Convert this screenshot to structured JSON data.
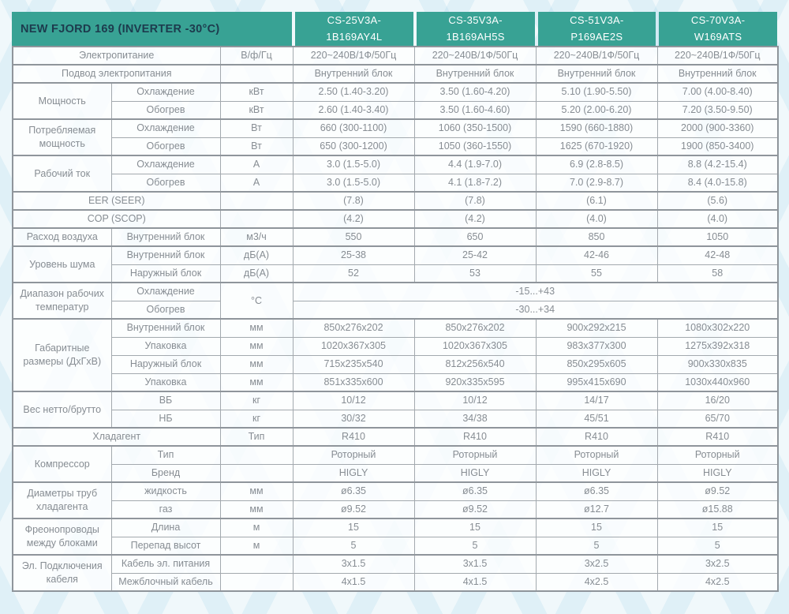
{
  "colors": {
    "teal": "#38a294",
    "title_text": "#1d3b4d",
    "model_text": "#ffffff",
    "cell_text": "#878d93",
    "border": "#a3a9ae",
    "background": "#f0f8fb",
    "pattern_accent": "#cfe8f3"
  },
  "header": {
    "title": "NEW FJORD 169 (INVERTER -30°C)",
    "models": [
      {
        "line1": "CS-25V3A-",
        "line2": "1B169AY4L"
      },
      {
        "line1": "CS-35V3A-",
        "line2": "1B169AH5S"
      },
      {
        "line1": "CS-51V3A-",
        "line2": "P169AE2S"
      },
      {
        "line1": "CS-70V3A-",
        "line2": "W169ATS"
      }
    ]
  },
  "table": {
    "rows": [
      {
        "gs": true,
        "cells": [
          {
            "t": "Электропитание",
            "k": "g",
            "cs": 2
          },
          {
            "t": "В/ф/Гц",
            "k": "u"
          },
          {
            "t": "220~240В/1Ф/50Гц",
            "k": "v"
          },
          {
            "t": "220~240В/1Ф/50Гц",
            "k": "v"
          },
          {
            "t": "220~240В/1Ф/50Гц",
            "k": "v"
          },
          {
            "t": "220~240В/1Ф/50Гц",
            "k": "v"
          }
        ]
      },
      {
        "gs": true,
        "cells": [
          {
            "t": "Подвод электропитания",
            "k": "g",
            "cs": 2
          },
          {
            "t": "",
            "k": "u"
          },
          {
            "t": "Внутренний блок",
            "k": "v"
          },
          {
            "t": "Внутренний блок",
            "k": "v"
          },
          {
            "t": "Внутренний блок",
            "k": "v"
          },
          {
            "t": "Внутренний блок",
            "k": "v"
          }
        ]
      },
      {
        "gs": true,
        "cells": [
          {
            "t": "Мощность",
            "k": "g",
            "rs": 2
          },
          {
            "t": "Охлаждение",
            "k": "s"
          },
          {
            "t": "кВт",
            "k": "u"
          },
          {
            "t": "2.50 (1.40-3.20)",
            "k": "v"
          },
          {
            "t": "3.50 (1.60-4.20)",
            "k": "v"
          },
          {
            "t": "5.10 (1.90-5.50)",
            "k": "v"
          },
          {
            "t": "7.00 (4.00-8.40)",
            "k": "v"
          }
        ]
      },
      {
        "cells": [
          {
            "t": "Обогрев",
            "k": "s"
          },
          {
            "t": "кВт",
            "k": "u"
          },
          {
            "t": "2.60 (1.40-3.40)",
            "k": "v"
          },
          {
            "t": "3.50 (1.60-4.60)",
            "k": "v"
          },
          {
            "t": "5.20 (2.00-6.20)",
            "k": "v"
          },
          {
            "t": "7.20 (3.50-9.50)",
            "k": "v"
          }
        ]
      },
      {
        "gs": true,
        "cells": [
          {
            "t": "Потребляемая мощность",
            "k": "g",
            "rs": 2
          },
          {
            "t": "Охлаждение",
            "k": "s"
          },
          {
            "t": "Вт",
            "k": "u"
          },
          {
            "t": "660 (300-1100)",
            "k": "v"
          },
          {
            "t": "1060 (350-1500)",
            "k": "v"
          },
          {
            "t": "1590 (660-1880)",
            "k": "v"
          },
          {
            "t": "2000 (900-3360)",
            "k": "v"
          }
        ]
      },
      {
        "cells": [
          {
            "t": "Обогрев",
            "k": "s"
          },
          {
            "t": "Вт",
            "k": "u"
          },
          {
            "t": "650 (300-1200)",
            "k": "v"
          },
          {
            "t": "1050 (360-1550)",
            "k": "v"
          },
          {
            "t": "1625 (670-1920)",
            "k": "v"
          },
          {
            "t": "1900 (850-3400)",
            "k": "v"
          }
        ]
      },
      {
        "gs": true,
        "cells": [
          {
            "t": "Рабочий ток",
            "k": "g",
            "rs": 2
          },
          {
            "t": "Охлаждение",
            "k": "s"
          },
          {
            "t": "А",
            "k": "u"
          },
          {
            "t": "3.0 (1.5-5.0)",
            "k": "v"
          },
          {
            "t": "4.4 (1.9-7.0)",
            "k": "v"
          },
          {
            "t": "6.9 (2.8-8.5)",
            "k": "v"
          },
          {
            "t": "8.8 (4.2-15.4)",
            "k": "v"
          }
        ]
      },
      {
        "cells": [
          {
            "t": "Обогрев",
            "k": "s"
          },
          {
            "t": "А",
            "k": "u"
          },
          {
            "t": "3.0 (1.5-5.0)",
            "k": "v"
          },
          {
            "t": "4.1 (1.8-7.2)",
            "k": "v"
          },
          {
            "t": "7.0 (2.9-8.7)",
            "k": "v"
          },
          {
            "t": "8.4 (4.0-15.8)",
            "k": "v"
          }
        ]
      },
      {
        "gs": true,
        "cells": [
          {
            "t": "EER (SEER)",
            "k": "g",
            "cs": 2
          },
          {
            "t": "",
            "k": "u"
          },
          {
            "t": "(7.8)",
            "k": "v"
          },
          {
            "t": "(7.8)",
            "k": "v"
          },
          {
            "t": "(6.1)",
            "k": "v"
          },
          {
            "t": "(5.6)",
            "k": "v"
          }
        ]
      },
      {
        "gs": true,
        "cells": [
          {
            "t": "COP (SCOP)",
            "k": "g",
            "cs": 2
          },
          {
            "t": "",
            "k": "u"
          },
          {
            "t": "(4.2)",
            "k": "v"
          },
          {
            "t": "(4.2)",
            "k": "v"
          },
          {
            "t": "(4.0)",
            "k": "v"
          },
          {
            "t": "(4.0)",
            "k": "v"
          }
        ]
      },
      {
        "gs": true,
        "cells": [
          {
            "t": "Расход воздуха",
            "k": "g"
          },
          {
            "t": "Внутренний блок",
            "k": "s"
          },
          {
            "t": "м3/ч",
            "k": "u"
          },
          {
            "t": "550",
            "k": "v"
          },
          {
            "t": "650",
            "k": "v"
          },
          {
            "t": "850",
            "k": "v"
          },
          {
            "t": "1050",
            "k": "v"
          }
        ]
      },
      {
        "gs": true,
        "cells": [
          {
            "t": "Уровень шума",
            "k": "g",
            "rs": 2
          },
          {
            "t": "Внутренний блок",
            "k": "s"
          },
          {
            "t": "дБ(А)",
            "k": "u"
          },
          {
            "t": "25-38",
            "k": "v"
          },
          {
            "t": "25-42",
            "k": "v"
          },
          {
            "t": "42-46",
            "k": "v"
          },
          {
            "t": "42-48",
            "k": "v"
          }
        ]
      },
      {
        "cells": [
          {
            "t": "Наружный блок",
            "k": "s"
          },
          {
            "t": "дБ(А)",
            "k": "u"
          },
          {
            "t": "52",
            "k": "v"
          },
          {
            "t": "53",
            "k": "v"
          },
          {
            "t": "55",
            "k": "v"
          },
          {
            "t": "58",
            "k": "v"
          }
        ]
      },
      {
        "gs": true,
        "cells": [
          {
            "t": "Диапазон рабочих температур",
            "k": "g",
            "rs": 2
          },
          {
            "t": "Охлаждение",
            "k": "s"
          },
          {
            "t": "°C",
            "k": "u",
            "rs": 2
          },
          {
            "t": "-15...+43",
            "k": "v",
            "cs": 4
          }
        ]
      },
      {
        "cells": [
          {
            "t": "Обогрев",
            "k": "s"
          },
          {
            "t": "-30...+34",
            "k": "v",
            "cs": 4
          }
        ]
      },
      {
        "gs": true,
        "cells": [
          {
            "t": "Габаритные размеры (ДхГхВ)",
            "k": "g",
            "rs": 4
          },
          {
            "t": "Внутренний блок",
            "k": "s"
          },
          {
            "t": "мм",
            "k": "u"
          },
          {
            "t": "850x276x202",
            "k": "v"
          },
          {
            "t": "850x276x202",
            "k": "v"
          },
          {
            "t": "900x292x215",
            "k": "v"
          },
          {
            "t": "1080x302x220",
            "k": "v"
          }
        ]
      },
      {
        "cells": [
          {
            "t": "Упаковка",
            "k": "s"
          },
          {
            "t": "мм",
            "k": "u"
          },
          {
            "t": "1020x367x305",
            "k": "v"
          },
          {
            "t": "1020x367x305",
            "k": "v"
          },
          {
            "t": "983x377x300",
            "k": "v"
          },
          {
            "t": "1275x392x318",
            "k": "v"
          }
        ]
      },
      {
        "cells": [
          {
            "t": "Наружный блок",
            "k": "s"
          },
          {
            "t": "мм",
            "k": "u"
          },
          {
            "t": "715x235x540",
            "k": "v"
          },
          {
            "t": "812x256x540",
            "k": "v"
          },
          {
            "t": "850x295x605",
            "k": "v"
          },
          {
            "t": "900x330x835",
            "k": "v"
          }
        ]
      },
      {
        "cells": [
          {
            "t": "Упаковка",
            "k": "s"
          },
          {
            "t": "мм",
            "k": "u"
          },
          {
            "t": "851x335x600",
            "k": "v"
          },
          {
            "t": "920x335x595",
            "k": "v"
          },
          {
            "t": "995x415x690",
            "k": "v"
          },
          {
            "t": "1030x440x960",
            "k": "v"
          }
        ]
      },
      {
        "gs": true,
        "cells": [
          {
            "t": "Вес нетто/брутто",
            "k": "g",
            "rs": 2
          },
          {
            "t": "ВБ",
            "k": "s"
          },
          {
            "t": "кг",
            "k": "u"
          },
          {
            "t": "10/12",
            "k": "v"
          },
          {
            "t": "10/12",
            "k": "v"
          },
          {
            "t": "14/17",
            "k": "v"
          },
          {
            "t": "16/20",
            "k": "v"
          }
        ]
      },
      {
        "cells": [
          {
            "t": "НБ",
            "k": "s"
          },
          {
            "t": "кг",
            "k": "u"
          },
          {
            "t": "30/32",
            "k": "v"
          },
          {
            "t": "34/38",
            "k": "v"
          },
          {
            "t": "45/51",
            "k": "v"
          },
          {
            "t": "65/70",
            "k": "v"
          }
        ]
      },
      {
        "gs": true,
        "cells": [
          {
            "t": "Хладагент",
            "k": "g",
            "cs": 2
          },
          {
            "t": "Тип",
            "k": "u"
          },
          {
            "t": "R410",
            "k": "v"
          },
          {
            "t": "R410",
            "k": "v"
          },
          {
            "t": "R410",
            "k": "v"
          },
          {
            "t": "R410",
            "k": "v"
          }
        ]
      },
      {
        "gs": true,
        "cells": [
          {
            "t": "Компрессор",
            "k": "g",
            "rs": 2
          },
          {
            "t": "Тип",
            "k": "s"
          },
          {
            "t": "",
            "k": "u"
          },
          {
            "t": "Роторный",
            "k": "v"
          },
          {
            "t": "Роторный",
            "k": "v"
          },
          {
            "t": "Роторный",
            "k": "v"
          },
          {
            "t": "Роторный",
            "k": "v"
          }
        ]
      },
      {
        "cells": [
          {
            "t": "Бренд",
            "k": "s"
          },
          {
            "t": "",
            "k": "u"
          },
          {
            "t": "HIGLY",
            "k": "v"
          },
          {
            "t": "HIGLY",
            "k": "v"
          },
          {
            "t": "HIGLY",
            "k": "v"
          },
          {
            "t": "HIGLY",
            "k": "v"
          }
        ]
      },
      {
        "gs": true,
        "cells": [
          {
            "t": "Диаметры труб хладагента",
            "k": "g",
            "rs": 2
          },
          {
            "t": "жидкость",
            "k": "s"
          },
          {
            "t": "мм",
            "k": "u"
          },
          {
            "t": "ø6.35",
            "k": "v"
          },
          {
            "t": "ø6.35",
            "k": "v"
          },
          {
            "t": "ø6.35",
            "k": "v"
          },
          {
            "t": "ø9.52",
            "k": "v"
          }
        ]
      },
      {
        "cells": [
          {
            "t": "газ",
            "k": "s"
          },
          {
            "t": "мм",
            "k": "u"
          },
          {
            "t": "ø9.52",
            "k": "v"
          },
          {
            "t": "ø9.52",
            "k": "v"
          },
          {
            "t": "ø12.7",
            "k": "v"
          },
          {
            "t": "ø15.88",
            "k": "v"
          }
        ]
      },
      {
        "gs": true,
        "cells": [
          {
            "t": "Фреонопроводы между блоками",
            "k": "g",
            "rs": 2
          },
          {
            "t": "Длина",
            "k": "s"
          },
          {
            "t": "м",
            "k": "u"
          },
          {
            "t": "15",
            "k": "v"
          },
          {
            "t": "15",
            "k": "v"
          },
          {
            "t": "15",
            "k": "v"
          },
          {
            "t": "15",
            "k": "v"
          }
        ]
      },
      {
        "cells": [
          {
            "t": "Перепад высот",
            "k": "s"
          },
          {
            "t": "м",
            "k": "u"
          },
          {
            "t": "5",
            "k": "v"
          },
          {
            "t": "5",
            "k": "v"
          },
          {
            "t": "5",
            "k": "v"
          },
          {
            "t": "5",
            "k": "v"
          }
        ]
      },
      {
        "gs": true,
        "cells": [
          {
            "t": "Эл. Подключения кабеля",
            "k": "g",
            "rs": 2
          },
          {
            "t": "Кабель эл. питания",
            "k": "s"
          },
          {
            "t": "",
            "k": "u"
          },
          {
            "t": "3x1.5",
            "k": "v"
          },
          {
            "t": "3x1.5",
            "k": "v"
          },
          {
            "t": "3x2.5",
            "k": "v"
          },
          {
            "t": "3x2.5",
            "k": "v"
          }
        ]
      },
      {
        "cells": [
          {
            "t": "Межблочный кабель",
            "k": "s"
          },
          {
            "t": "",
            "k": "u"
          },
          {
            "t": "4x1.5",
            "k": "v"
          },
          {
            "t": "4x1.5",
            "k": "v"
          },
          {
            "t": "4x2.5",
            "k": "v"
          },
          {
            "t": "4x2.5",
            "k": "v"
          }
        ]
      }
    ]
  }
}
